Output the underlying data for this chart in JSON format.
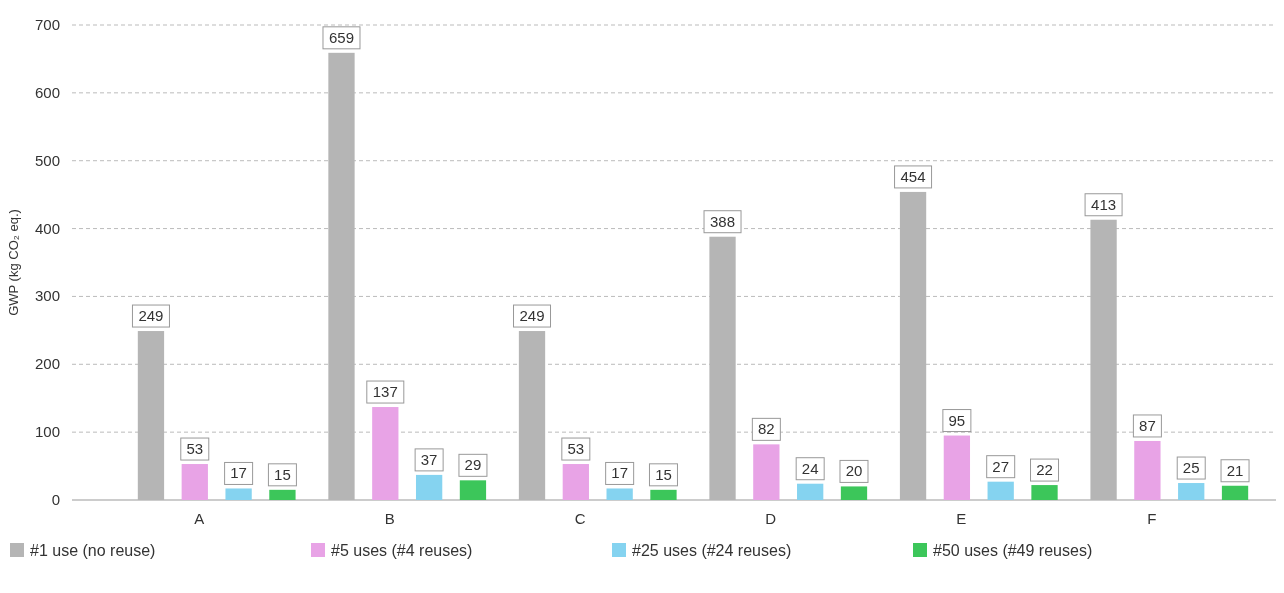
{
  "chart_data": {
    "type": "bar",
    "ylabel": "GWP (kg CO₂ eq.)",
    "categories": [
      "A",
      "B",
      "C",
      "D",
      "E",
      "F"
    ],
    "series": [
      {
        "name": "#1 use (no reuse)",
        "color": "#b5b5b5",
        "values": [
          249,
          659,
          249,
          388,
          454,
          413
        ]
      },
      {
        "name": "#5 uses (#4 reuses)",
        "color": "#e8a3e6",
        "values": [
          53,
          137,
          53,
          82,
          95,
          87
        ]
      },
      {
        "name": "#25 uses (#24 reuses)",
        "color": "#85d3f0",
        "values": [
          17,
          37,
          17,
          24,
          27,
          25
        ]
      },
      {
        "name": "#50 uses (#49 reuses)",
        "color": "#3cc65a",
        "values": [
          15,
          29,
          15,
          20,
          22,
          21
        ]
      }
    ],
    "ylim": [
      0,
      700
    ],
    "yticks": [
      0,
      100,
      200,
      300,
      400,
      500,
      600,
      700
    ],
    "grid": "y",
    "legend": "bottom",
    "data_labels": true
  }
}
